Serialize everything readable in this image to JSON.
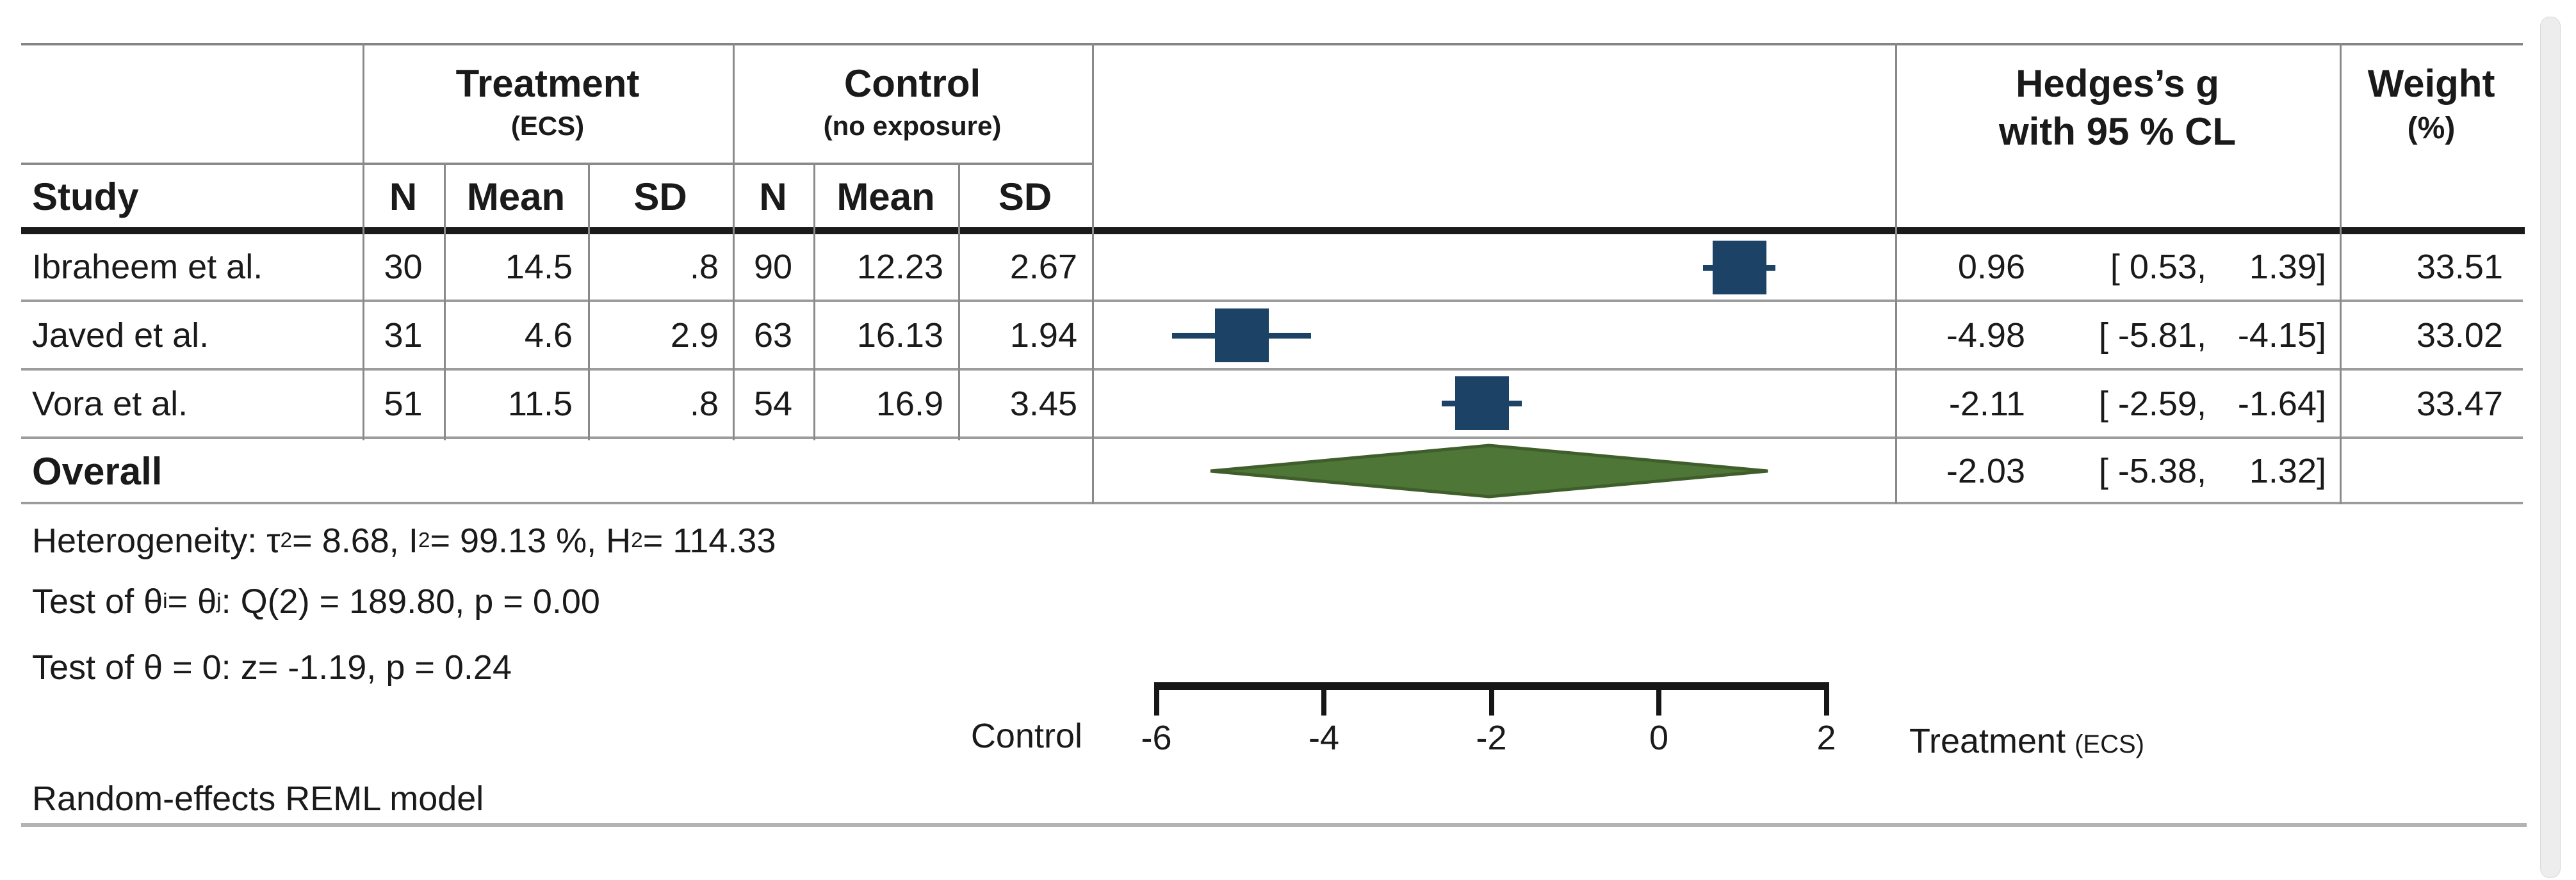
{
  "table": {
    "groups": {
      "treatment": {
        "label": "Treatment",
        "sublabel": "(ECS)"
      },
      "control": {
        "label": "Control",
        "sublabel": "(no exposure)"
      },
      "effect": {
        "label": "Hedges’s g",
        "sublabel": "with 95 % CL"
      },
      "weight": {
        "label": "Weight",
        "sublabel": "(%)"
      }
    },
    "columns": {
      "study": "Study",
      "n": "N",
      "mean": "Mean",
      "sd": "SD"
    },
    "rows": [
      {
        "study": "Ibraheem et al.",
        "t_n": "30",
        "t_mean": "14.5",
        "t_sd": ".8",
        "c_n": "90",
        "c_mean": "12.23",
        "c_sd": "2.67",
        "est": "0.96",
        "ci_lo": "[ 0.53,",
        "ci_hi": "1.39]",
        "weight": "33.51"
      },
      {
        "study": "Javed et al.",
        "t_n": "31",
        "t_mean": "4.6",
        "t_sd": "2.9",
        "c_n": "63",
        "c_mean": "16.13",
        "c_sd": "1.94",
        "est": "-4.98",
        "ci_lo": "[ -5.81,",
        "ci_hi": "-4.15]",
        "weight": "33.02"
      },
      {
        "study": "Vora et al.",
        "t_n": "51",
        "t_mean": "11.5",
        "t_sd": ".8",
        "c_n": "54",
        "c_mean": "16.9",
        "c_sd": "3.45",
        "est": "-2.11",
        "ci_lo": "[ -2.59,",
        "ci_hi": "-1.64]",
        "weight": "33.47"
      }
    ],
    "overall": {
      "label": "Overall",
      "est": "-2.03",
      "ci_lo": "[ -5.38,",
      "ci_hi": "1.32]"
    }
  },
  "stats": {
    "heterogeneity_html": "Heterogeneity: τ<sup>2</sup> = 8.68,  I<sup>2</sup> = 99.13 %, H<sup>2</sup> = 114.33",
    "test_between_html": "Test of θ<sub>i</sub> = θ<sub>j</sub>: Q(2) = 189.80, p = 0.00",
    "test_overall_html": "Test of θ = 0: z= -1.19, p = 0.24",
    "model_note": "Random-effects REML model"
  },
  "chart_data": {
    "type": "scatter",
    "subtype": "forest-plot",
    "title": "",
    "xlabel": "Hedges’s g",
    "x_ticks": [
      -6,
      -4,
      -2,
      0,
      2
    ],
    "xlim": [
      -6.7,
      2.8
    ],
    "grid": false,
    "direction_labels": {
      "left": "Control",
      "right": "Treatment",
      "right_sub": "(ECS)"
    },
    "series": [
      {
        "name": "Ibraheem et al.",
        "effect": 0.96,
        "ci": [
          0.53,
          1.39
        ],
        "weight_pct": 33.51
      },
      {
        "name": "Javed et al.",
        "effect": -4.98,
        "ci": [
          -5.81,
          -4.15
        ],
        "weight_pct": 33.02
      },
      {
        "name": "Vora et al.",
        "effect": -2.11,
        "ci": [
          -2.59,
          -1.64
        ],
        "weight_pct": 33.47
      }
    ],
    "overall": {
      "name": "Overall",
      "effect": -2.03,
      "ci": [
        -5.38,
        1.32
      ]
    },
    "heterogeneity": {
      "tau2": 8.68,
      "I2_pct": 99.13,
      "H2": 114.33
    },
    "test_between": {
      "Q_df": 2,
      "Q": 189.8,
      "p": 0.0
    },
    "test_overall": {
      "z": -1.19,
      "p": 0.24
    },
    "model": "Random-effects REML model",
    "colors": {
      "marker": "#1c4266",
      "diamond_fill": "#4e7636",
      "diamond_edge": "#3f5e2b",
      "axis": "#161616"
    }
  }
}
